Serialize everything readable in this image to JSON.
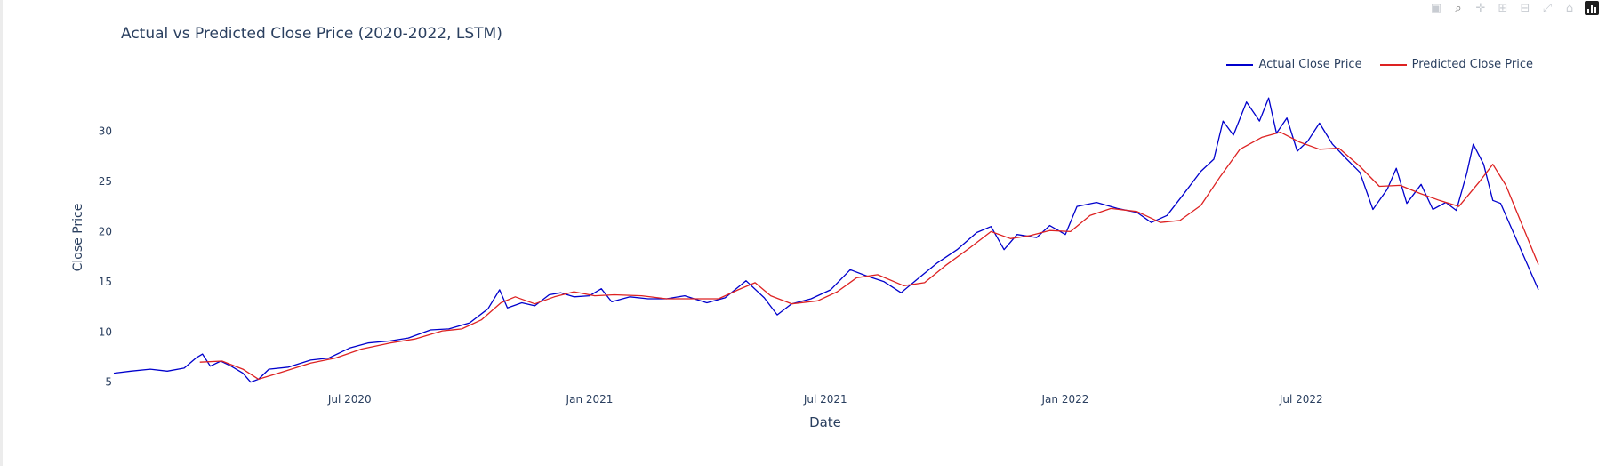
{
  "modebar": {
    "buttons": [
      {
        "name": "camera-icon",
        "glyph": "▣"
      },
      {
        "name": "zoom-icon",
        "glyph": "⌕"
      },
      {
        "name": "pan-icon",
        "glyph": "✛"
      },
      {
        "name": "zoom-in-icon",
        "glyph": "⊞"
      },
      {
        "name": "zoom-out-icon",
        "glyph": "⊟"
      },
      {
        "name": "autoscale-icon",
        "glyph": "⤢"
      },
      {
        "name": "reset-axes-icon",
        "glyph": "⌂"
      }
    ]
  },
  "colors": {
    "actual": "#0000cc",
    "predicted": "#dd2222",
    "grid": "#ebf0f8",
    "text": "#2a3f5f"
  },
  "chart_data": {
    "type": "line",
    "title": "Actual vs Predicted Close Price (2020-2022, LSTM)",
    "xlabel": "Date",
    "ylabel": "Close Price",
    "x_range": [
      "2020-01-02",
      "2022-12-30"
    ],
    "ylim": [
      4.8,
      34.2
    ],
    "x_ticks": [
      {
        "date": "2020-07-01",
        "label": "Jul 2020"
      },
      {
        "date": "2021-01-01",
        "label": "Jan 2021"
      },
      {
        "date": "2021-07-01",
        "label": "Jul 2021"
      },
      {
        "date": "2022-01-01",
        "label": "Jan 2022"
      },
      {
        "date": "2022-07-01",
        "label": "Jul 2022"
      }
    ],
    "y_ticks": [
      5,
      10,
      15,
      20,
      25,
      30
    ],
    "grid": false,
    "legend_position": "top-right",
    "series": [
      {
        "name": "Actual Close Price",
        "color": "#0000cc",
        "points": [
          [
            "2020-01-02",
            5.9
          ],
          [
            "2020-01-15",
            6.1
          ],
          [
            "2020-01-30",
            6.3
          ],
          [
            "2020-02-12",
            6.1
          ],
          [
            "2020-02-25",
            6.4
          ],
          [
            "2020-03-05",
            7.4
          ],
          [
            "2020-03-10",
            7.8
          ],
          [
            "2020-03-16",
            6.6
          ],
          [
            "2020-03-24",
            7.1
          ],
          [
            "2020-04-01",
            6.6
          ],
          [
            "2020-04-10",
            5.9
          ],
          [
            "2020-04-16",
            5.0
          ],
          [
            "2020-04-22",
            5.3
          ],
          [
            "2020-04-30",
            6.3
          ],
          [
            "2020-05-15",
            6.5
          ],
          [
            "2020-06-01",
            7.2
          ],
          [
            "2020-06-15",
            7.4
          ],
          [
            "2020-07-01",
            8.4
          ],
          [
            "2020-07-15",
            8.9
          ],
          [
            "2020-08-01",
            9.1
          ],
          [
            "2020-08-15",
            9.4
          ],
          [
            "2020-09-01",
            10.2
          ],
          [
            "2020-09-15",
            10.3
          ],
          [
            "2020-10-01",
            10.9
          ],
          [
            "2020-10-15",
            12.3
          ],
          [
            "2020-10-24",
            14.2
          ],
          [
            "2020-10-30",
            12.4
          ],
          [
            "2020-11-10",
            12.9
          ],
          [
            "2020-11-20",
            12.6
          ],
          [
            "2020-12-01",
            13.7
          ],
          [
            "2020-12-10",
            13.9
          ],
          [
            "2020-12-20",
            13.5
          ],
          [
            "2021-01-01",
            13.6
          ],
          [
            "2021-01-10",
            14.3
          ],
          [
            "2021-01-18",
            13.0
          ],
          [
            "2021-02-01",
            13.5
          ],
          [
            "2021-02-15",
            13.3
          ],
          [
            "2021-03-01",
            13.3
          ],
          [
            "2021-03-15",
            13.6
          ],
          [
            "2021-04-01",
            12.9
          ],
          [
            "2021-04-15",
            13.4
          ],
          [
            "2021-05-01",
            15.1
          ],
          [
            "2021-05-15",
            13.4
          ],
          [
            "2021-05-25",
            11.7
          ],
          [
            "2021-06-05",
            12.8
          ],
          [
            "2021-06-20",
            13.3
          ],
          [
            "2021-07-05",
            14.2
          ],
          [
            "2021-07-20",
            16.2
          ],
          [
            "2021-08-01",
            15.6
          ],
          [
            "2021-08-15",
            15.0
          ],
          [
            "2021-08-28",
            13.9
          ],
          [
            "2021-09-10",
            15.3
          ],
          [
            "2021-09-25",
            16.9
          ],
          [
            "2021-10-10",
            18.2
          ],
          [
            "2021-10-25",
            19.9
          ],
          [
            "2021-11-05",
            20.5
          ],
          [
            "2021-11-15",
            18.2
          ],
          [
            "2021-11-25",
            19.7
          ],
          [
            "2021-12-10",
            19.4
          ],
          [
            "2021-12-20",
            20.6
          ],
          [
            "2022-01-01",
            19.7
          ],
          [
            "2022-01-10",
            22.5
          ],
          [
            "2022-01-25",
            22.9
          ],
          [
            "2022-02-10",
            22.3
          ],
          [
            "2022-02-25",
            21.9
          ],
          [
            "2022-03-08",
            20.9
          ],
          [
            "2022-03-20",
            21.6
          ],
          [
            "2022-04-01",
            23.6
          ],
          [
            "2022-04-15",
            26.0
          ],
          [
            "2022-04-25",
            27.2
          ],
          [
            "2022-05-02",
            31.0
          ],
          [
            "2022-05-10",
            29.6
          ],
          [
            "2022-05-20",
            32.9
          ],
          [
            "2022-05-30",
            31.0
          ],
          [
            "2022-06-06",
            33.3
          ],
          [
            "2022-06-12",
            29.8
          ],
          [
            "2022-06-20",
            31.3
          ],
          [
            "2022-06-28",
            28.0
          ],
          [
            "2022-07-06",
            29.0
          ],
          [
            "2022-07-15",
            30.8
          ],
          [
            "2022-07-25",
            28.7
          ],
          [
            "2022-08-05",
            27.2
          ],
          [
            "2022-08-15",
            25.9
          ],
          [
            "2022-08-25",
            22.2
          ],
          [
            "2022-09-05",
            24.2
          ],
          [
            "2022-09-12",
            26.3
          ],
          [
            "2022-09-20",
            22.8
          ],
          [
            "2022-10-01",
            24.7
          ],
          [
            "2022-10-10",
            22.2
          ],
          [
            "2022-10-20",
            22.9
          ],
          [
            "2022-10-28",
            22.1
          ],
          [
            "2022-11-05",
            25.8
          ],
          [
            "2022-11-10",
            28.7
          ],
          [
            "2022-11-18",
            26.7
          ],
          [
            "2022-11-25",
            23.1
          ],
          [
            "2022-12-01",
            22.8
          ],
          [
            "2022-12-30",
            14.2
          ]
        ]
      },
      {
        "name": "Predicted Close Price",
        "color": "#dd2222",
        "points": [
          [
            "2020-03-08",
            7.0
          ],
          [
            "2020-03-25",
            7.1
          ],
          [
            "2020-04-10",
            6.3
          ],
          [
            "2020-04-22",
            5.3
          ],
          [
            "2020-05-10",
            6.0
          ],
          [
            "2020-06-01",
            6.9
          ],
          [
            "2020-06-20",
            7.4
          ],
          [
            "2020-07-10",
            8.3
          ],
          [
            "2020-08-01",
            8.9
          ],
          [
            "2020-08-20",
            9.3
          ],
          [
            "2020-09-10",
            10.1
          ],
          [
            "2020-09-25",
            10.3
          ],
          [
            "2020-10-10",
            11.2
          ],
          [
            "2020-10-25",
            12.9
          ],
          [
            "2020-11-05",
            13.5
          ],
          [
            "2020-11-20",
            12.8
          ],
          [
            "2020-12-05",
            13.5
          ],
          [
            "2020-12-20",
            14.0
          ],
          [
            "2021-01-05",
            13.6
          ],
          [
            "2021-01-20",
            13.7
          ],
          [
            "2021-02-10",
            13.6
          ],
          [
            "2021-03-01",
            13.3
          ],
          [
            "2021-03-20",
            13.3
          ],
          [
            "2021-04-10",
            13.3
          ],
          [
            "2021-04-25",
            14.2
          ],
          [
            "2021-05-08",
            14.9
          ],
          [
            "2021-05-20",
            13.6
          ],
          [
            "2021-06-05",
            12.8
          ],
          [
            "2021-06-25",
            13.1
          ],
          [
            "2021-07-10",
            14.0
          ],
          [
            "2021-07-25",
            15.4
          ],
          [
            "2021-08-10",
            15.7
          ],
          [
            "2021-08-30",
            14.6
          ],
          [
            "2021-09-15",
            14.9
          ],
          [
            "2021-10-01",
            16.6
          ],
          [
            "2021-10-20",
            18.4
          ],
          [
            "2021-11-05",
            20.0
          ],
          [
            "2021-11-20",
            19.3
          ],
          [
            "2021-12-05",
            19.6
          ],
          [
            "2021-12-20",
            20.1
          ],
          [
            "2022-01-05",
            20.0
          ],
          [
            "2022-01-20",
            21.6
          ],
          [
            "2022-02-05",
            22.3
          ],
          [
            "2022-02-25",
            22.0
          ],
          [
            "2022-03-15",
            20.9
          ],
          [
            "2022-03-30",
            21.1
          ],
          [
            "2022-04-15",
            22.6
          ],
          [
            "2022-04-30",
            25.5
          ],
          [
            "2022-05-15",
            28.2
          ],
          [
            "2022-06-01",
            29.4
          ],
          [
            "2022-06-15",
            29.9
          ],
          [
            "2022-06-30",
            28.9
          ],
          [
            "2022-07-15",
            28.2
          ],
          [
            "2022-07-30",
            28.3
          ],
          [
            "2022-08-15",
            26.5
          ],
          [
            "2022-08-30",
            24.5
          ],
          [
            "2022-09-15",
            24.6
          ],
          [
            "2022-09-30",
            23.8
          ],
          [
            "2022-10-15",
            23.1
          ],
          [
            "2022-10-30",
            22.5
          ],
          [
            "2022-11-15",
            25.0
          ],
          [
            "2022-11-25",
            26.7
          ],
          [
            "2022-12-05",
            24.6
          ],
          [
            "2022-12-30",
            16.7
          ]
        ]
      }
    ]
  }
}
